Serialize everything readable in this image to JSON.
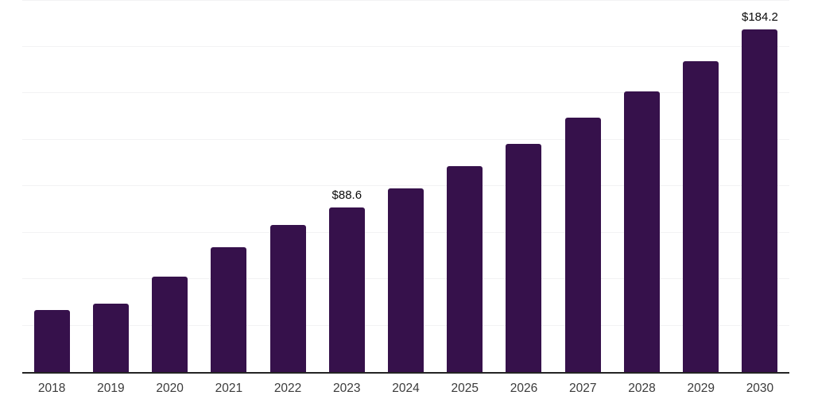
{
  "chart_data": {
    "type": "bar",
    "title": "",
    "categories": [
      "2018",
      "2019",
      "2020",
      "2021",
      "2022",
      "2023",
      "2024",
      "2025",
      "2026",
      "2027",
      "2028",
      "2029",
      "2030"
    ],
    "values": [
      33.5,
      36.8,
      51.5,
      67.0,
      79.0,
      88.6,
      98.8,
      110.5,
      122.6,
      136.6,
      150.8,
      167.0,
      184.2
    ],
    "point_labels": [
      "",
      "",
      "",
      "",
      "",
      "$88.6",
      "",
      "",
      "",
      "",
      "",
      "",
      "$184.2"
    ],
    "xlabel": "",
    "ylabel": "",
    "ylim": [
      0,
      200
    ],
    "gridline_step": 25,
    "grid": "horizontal",
    "y_axis_labels_visible": false,
    "legend_position": "none",
    "colors": {
      "bar": "#36114B",
      "axis_line": "#242424",
      "gridline": "#f2f2f4",
      "tick_label": "#3b3b3b",
      "value_label": "#0a0a0a",
      "background": "#ffffff"
    }
  }
}
